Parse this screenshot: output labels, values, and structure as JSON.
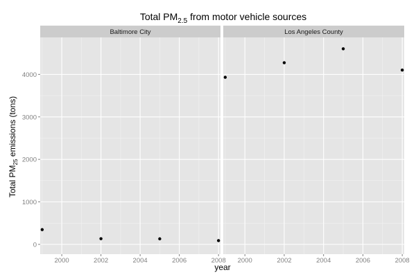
{
  "chart_data": {
    "type": "scatter",
    "title": "Total PM",
    "title_sub": "2.5",
    "title_suffix": " from motor vehicle sources",
    "xlabel": "year",
    "ylabel_prefix": "Total PM",
    "ylabel_sub": "25",
    "ylabel_suffix": " emissions (tons)",
    "facet_by": "fips",
    "xlim": [
      1998.9,
      2008.1
    ],
    "ylim": [
      -230,
      4870
    ],
    "x_ticks": [
      2000,
      2002,
      2004,
      2006,
      2008
    ],
    "x_tick_labels": [
      "2000",
      "2002",
      "2004",
      "2006",
      "2008"
    ],
    "y_ticks": [
      0,
      1000,
      2000,
      3000,
      4000
    ],
    "y_tick_labels": [
      "0",
      "1000",
      "2000",
      "3000",
      "4000"
    ],
    "grid": true,
    "legend": "none",
    "panels": [
      {
        "name": "Baltimore City",
        "x": [
          1999,
          2002,
          2005,
          2008
        ],
        "y": [
          346.8,
          134.3,
          130.4,
          88.3
        ]
      },
      {
        "name": "Los Angeles County",
        "x": [
          1999,
          2002,
          2005,
          2008
        ],
        "y": [
          3931.1,
          4274.0,
          4601.4,
          4101.3
        ]
      }
    ],
    "colors": {
      "panel_background": "#e5e5e5",
      "grid_major": "#ffffff",
      "grid_minor": "#f2f2f2",
      "strip_background": "#cccccc",
      "point": "#000000",
      "tick_text": "#7f7f7f"
    }
  }
}
